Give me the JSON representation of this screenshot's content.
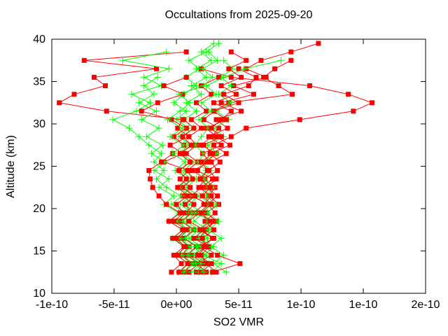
{
  "page": {
    "background": "#ffffff"
  },
  "chart_data": {
    "type": "line",
    "title": "Occultations from 2025-09-20",
    "xlabel": "SO2 VMR",
    "ylabel": "Altitude (km)",
    "legend": "none",
    "grid": false,
    "value_scale": 1e-11,
    "xlim_scaled": [
      -10,
      20
    ],
    "ylim": [
      10,
      40
    ],
    "x_ticks": [
      {
        "v": -10,
        "label": "-1e-10"
      },
      {
        "v": -5,
        "label": "-5e-11"
      },
      {
        "v": 0,
        "label": "0e+00"
      },
      {
        "v": 5,
        "label": "5e-11"
      },
      {
        "v": 10,
        "label": "1e-10"
      },
      {
        "v": 15,
        "label": "1e-10"
      },
      {
        "v": 20,
        "label": "2e-10"
      }
    ],
    "y_ticks": [
      {
        "v": 10,
        "label": "10"
      },
      {
        "v": 15,
        "label": "15"
      },
      {
        "v": 20,
        "label": "20"
      },
      {
        "v": 25,
        "label": "25"
      },
      {
        "v": 30,
        "label": "30"
      },
      {
        "v": 35,
        "label": "35"
      },
      {
        "v": 40,
        "label": "40"
      }
    ],
    "colors": {
      "red_series": "#ff0000",
      "green_series": "#00ff00",
      "axis": "#000000",
      "text": "#000000"
    },
    "series": [
      {
        "name": "occultation-01-squares",
        "color": "#ff0000",
        "marker": "square",
        "alt_min": 12.5,
        "alt_step": 1,
        "values": [
          1.6,
          2.2,
          1.2,
          2.6,
          1.8,
          2.4,
          3.1,
          1.4,
          2.2,
          2.8,
          1.8,
          2.3,
          1.3,
          2.7,
          2.1,
          3.6,
          2.6,
          4.1,
          3.2,
          5.2,
          3.6,
          6.2,
          4.6,
          7.2,
          5.6,
          6.8,
          9.2,
          11.4
        ]
      },
      {
        "name": "occultation-01-plus",
        "color": "#00ff00",
        "marker": "plus",
        "alt_min": 12.5,
        "alt_step": 1,
        "values": [
          2.8,
          3.6,
          2.2,
          3.0,
          1.8,
          2.6,
          1.4,
          2.2,
          1.0,
          1.8,
          0.8,
          1.6,
          0.6,
          1.4,
          0.4,
          1.2,
          0.2,
          1.0,
          0.0,
          0.8,
          -0.2,
          0.6,
          1.6,
          0.8,
          1.8,
          1.0,
          2.4,
          3.4
        ]
      },
      {
        "name": "occultation-02-squares",
        "color": "#ff0000",
        "marker": "square",
        "alt_min": 12.5,
        "alt_step": 1,
        "values": [
          0.6,
          1.2,
          0.4,
          1.0,
          0.2,
          0.9,
          0.1,
          0.8,
          1.4,
          0.5,
          1.1,
          0.3,
          1.0,
          -1.0,
          0.5,
          -0.5,
          1.0,
          0.1,
          0.5,
          -5.6,
          -9.4,
          -8.2,
          -5.7,
          -6.6,
          -1.6,
          -7.4,
          0.8
        ]
      },
      {
        "name": "occultation-02-plus",
        "color": "#00ff00",
        "marker": "plus",
        "alt_min": 12.5,
        "alt_step": 1,
        "values": [
          0.6,
          1.4,
          0.4,
          1.2,
          0.2,
          1.0,
          0.0,
          0.8,
          -0.4,
          0.4,
          -0.8,
          -1.6,
          -1.0,
          -1.8,
          -1.2,
          -2.2,
          -3.0,
          -3.8,
          -5.1,
          -3.2,
          -2.1,
          -3.6,
          -1.2,
          -2.6,
          -0.6,
          -4.3,
          -0.8
        ]
      },
      {
        "name": "occultation-03-squares",
        "color": "#ff0000",
        "marker": "square",
        "alt_min": 12.5,
        "alt_step": 1,
        "values": [
          2.4,
          1.6,
          2.8,
          1.8,
          3.0,
          2.0,
          3.2,
          2.4,
          3.4,
          2.6,
          3.1,
          2.2,
          3.3,
          2.8,
          4.0,
          3.0,
          4.4,
          5.6,
          9.9,
          14.2,
          15.7,
          13.8,
          10.7,
          4.4,
          2.0
        ]
      },
      {
        "name": "occultation-03-plus",
        "color": "#00ff00",
        "marker": "plus",
        "alt_min": 12.5,
        "alt_step": 1,
        "values": [
          1.8,
          2.6,
          1.4,
          2.0,
          1.0,
          1.8,
          0.8,
          1.6,
          0.6,
          1.4,
          0.4,
          1.2,
          0.3,
          1.1,
          0.2,
          1.0,
          0.4,
          1.4,
          0.6,
          1.6,
          0.8,
          2.0,
          1.2,
          2.4,
          1.6,
          2.8,
          2.0,
          3.0
        ]
      },
      {
        "name": "occultation-04-squares",
        "color": "#ff0000",
        "marker": "square",
        "alt_min": 12.5,
        "alt_step": 1,
        "values": [
          3.2,
          2.4,
          2.0,
          2.6,
          1.4,
          2.2,
          1.0,
          1.8,
          2.6,
          1.2,
          2.0,
          2.9,
          1.7,
          2.4,
          3.2,
          2.0,
          2.8,
          3.4,
          2.2,
          3.0,
          4.2,
          9.3,
          8.2,
          7.0,
          7.9,
          9.2
        ]
      },
      {
        "name": "occultation-04-plus",
        "color": "#00ff00",
        "marker": "plus",
        "alt_min": 12.5,
        "alt_step": 1,
        "values": [
          0.2,
          1.0,
          0.0,
          0.8,
          -0.3,
          0.5,
          -0.6,
          0.2,
          -1.0,
          -0.2,
          -1.4,
          -0.6,
          -1.8,
          -0.9,
          -2.0,
          -1.1,
          -2.4,
          -1.4,
          -2.8,
          -1.6,
          -3.0,
          -1.8,
          -2.6,
          -1.5
        ]
      },
      {
        "name": "occultation-05-squares",
        "color": "#ff0000",
        "marker": "square",
        "alt_min": 12.5,
        "alt_step": 1,
        "values": [
          -0.4,
          0.4,
          -0.2,
          0.6,
          -0.3,
          0.5,
          -0.6,
          0.3,
          -0.8,
          -1.4,
          -1.9,
          -2.1,
          -2.2,
          -1.2,
          -0.3,
          0.6,
          -0.2,
          0.8,
          -0.4,
          -2.8,
          -1.5,
          0.5,
          -1.0,
          0.8
        ]
      },
      {
        "name": "occultation-05-plus",
        "color": "#00ff00",
        "marker": "plus",
        "alt_min": 12.5,
        "alt_step": 1,
        "values": [
          4.0,
          3.0,
          3.8,
          2.8,
          3.6,
          2.6,
          3.4,
          2.5,
          3.2,
          2.4,
          3.0,
          2.2,
          2.8,
          2.0,
          3.3,
          2.5,
          3.8,
          3.0,
          4.2,
          3.2,
          4.4,
          3.4,
          4.4,
          3.6,
          4.5,
          3.8
        ]
      },
      {
        "name": "occultation-06-squares",
        "color": "#ff0000",
        "marker": "square",
        "alt_min": 12.5,
        "alt_step": 1,
        "values": [
          1.0,
          1.8,
          0.8,
          1.6,
          0.6,
          1.4,
          0.4,
          1.2,
          0.7,
          1.5,
          0.5,
          1.3,
          0.9,
          1.7,
          0.8,
          1.6,
          1.0,
          2.0,
          1.2,
          2.4,
          1.6,
          2.8,
          2.0,
          3.4
        ]
      },
      {
        "name": "occultation-06-plus",
        "color": "#00ff00",
        "marker": "plus",
        "alt_min": 12.5,
        "alt_step": 1,
        "values": [
          1.2,
          2.0,
          0.9,
          1.7,
          0.7,
          1.5,
          0.5,
          1.3,
          0.3,
          1.1,
          0.2,
          0.9,
          -0.1,
          0.7,
          -0.3,
          0.6,
          -0.5,
          0.5,
          -0.7,
          0.3,
          1.1,
          0.2,
          2.2,
          2.9,
          2.1,
          3.3,
          2.6
        ]
      },
      {
        "name": "occultation-07-squares",
        "color": "#ff0000",
        "marker": "square",
        "alt_min": 12.5,
        "alt_step": 1,
        "values": [
          2.0,
          2.8,
          1.7,
          2.4,
          2.1,
          3.0,
          2.3,
          3.1,
          2.5,
          3.3,
          2.4,
          3.2,
          2.6,
          3.5,
          2.7,
          4.3,
          3.2,
          2.4,
          4.0,
          3.0,
          5.0,
          3.8,
          5.8,
          6.4,
          5.0
        ]
      },
      {
        "name": "occultation-07-plus",
        "color": "#00ff00",
        "marker": "plus",
        "alt_min": 12.5,
        "alt_step": 1,
        "values": [
          2.2,
          1.5,
          2.4,
          1.6,
          2.5,
          1.7,
          2.6,
          1.8,
          2.7,
          1.9,
          2.6,
          1.8,
          2.4,
          1.7,
          2.2,
          1.5,
          2.0,
          2.6,
          1.8,
          2.8,
          2.0,
          3.2,
          2.4,
          3.8,
          5.5,
          8.4
        ]
      },
      {
        "name": "occultation-08-squares",
        "color": "#ff0000",
        "marker": "square",
        "alt_min": 12.5,
        "alt_step": 1,
        "values": [
          0.2,
          0.9,
          0.1,
          0.7,
          0.0,
          0.8,
          -0.2,
          0.6,
          0.0,
          0.9,
          0.1,
          0.8,
          0.2,
          1.1,
          0.3,
          1.2,
          0.5,
          1.4,
          0.6
        ]
      },
      {
        "name": "occultation-09-squares",
        "color": "#ff0000",
        "marker": "square",
        "alt_min": 12.5,
        "alt_step": 1,
        "values": [
          2.9,
          5.1,
          3.3,
          2.2,
          2.9,
          1.9,
          2.7,
          2.0,
          2.8,
          2.1,
          2.7,
          1.9,
          2.5,
          2.0,
          2.9,
          2.2,
          3.6,
          2.8,
          3.6,
          4.4,
          3.0,
          4.8,
          3.6,
          5.2,
          4.2,
          5.6,
          4.4
        ]
      }
    ]
  }
}
